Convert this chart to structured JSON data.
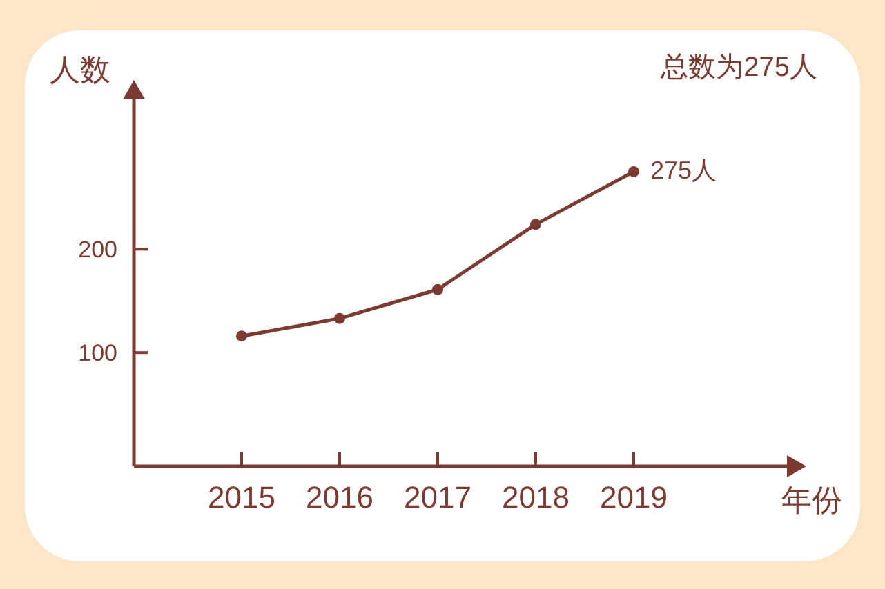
{
  "chart_data": {
    "type": "line",
    "title": "总数为275人",
    "xlabel": "年份",
    "ylabel": "人数",
    "categories": [
      "2015",
      "2016",
      "2017",
      "2018",
      "2019"
    ],
    "values": [
      116,
      133,
      161,
      224,
      275
    ],
    "value_labels": [
      null,
      null,
      null,
      null,
      "275人"
    ],
    "color": "#7b3b33",
    "marker": "circle",
    "ylim": [
      -10,
      345
    ],
    "yticks": [
      100,
      200
    ],
    "grid": false
  }
}
